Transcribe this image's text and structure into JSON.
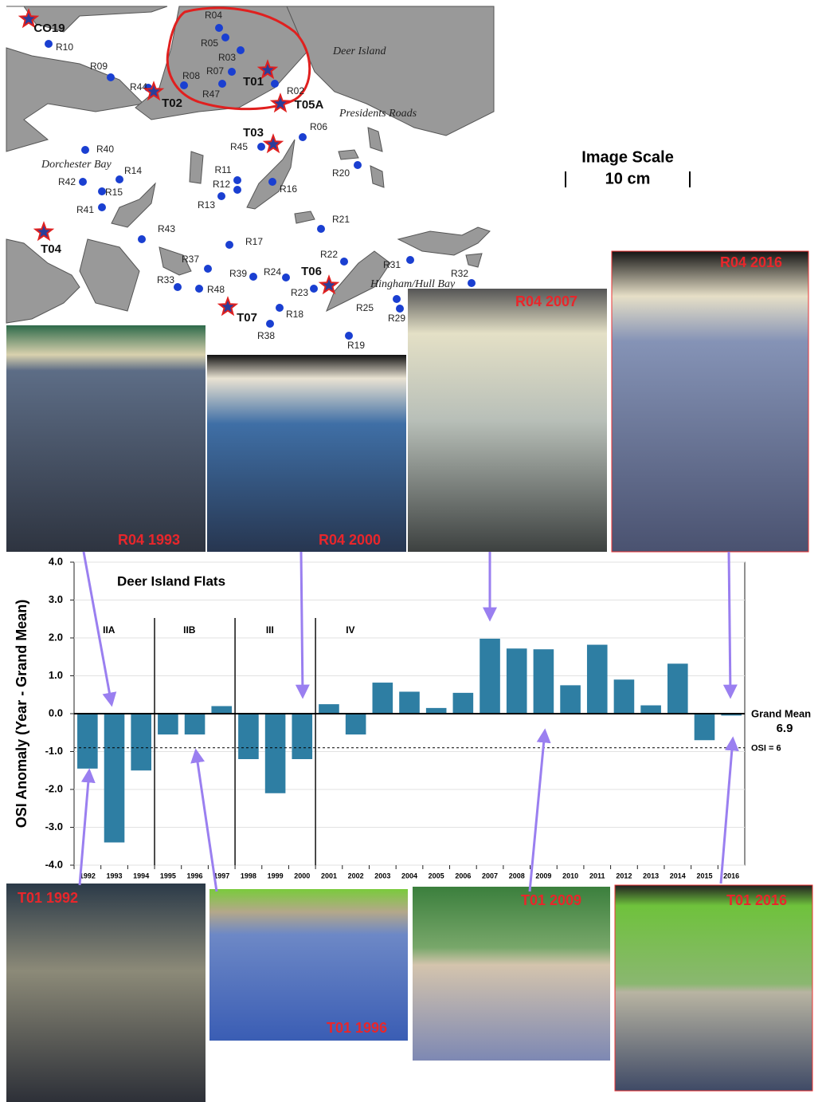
{
  "map": {
    "place_names": [
      "Deer Island",
      "Presidents Roads",
      "Dorchester Bay",
      "Hingham/Hull Bay"
    ],
    "stations": [
      "R04",
      "R05",
      "R03",
      "R07",
      "R08",
      "R47",
      "R02",
      "R10",
      "R09",
      "R44",
      "R06",
      "R45",
      "R40",
      "R14",
      "R42",
      "R15",
      "R41",
      "R11",
      "R12",
      "R13",
      "R16",
      "R20",
      "R21",
      "R43",
      "R17",
      "R22",
      "R31",
      "R32",
      "R37",
      "R39",
      "R24",
      "R33",
      "R48",
      "R23",
      "R25",
      "R29",
      "R18",
      "R38",
      "R19"
    ],
    "sites": [
      "CO19",
      "T02",
      "T01",
      "T05A",
      "T03",
      "T04",
      "T06",
      "T07"
    ]
  },
  "scale": {
    "title": "Image Scale",
    "length": "10 cm"
  },
  "photos": {
    "top": [
      "R04 1993",
      "R04 2000",
      "R04 2007",
      "R04 2016"
    ],
    "bottom": [
      "T01 1992",
      "T01 1996",
      "T01 2009",
      "T01 2016"
    ]
  },
  "chart_data": {
    "type": "bar",
    "title": "Deer Island Flats",
    "y_label": "OSI Anomaly (Year - Grand Mean)",
    "categories": [
      "1992",
      "1993",
      "1994",
      "1995",
      "1996",
      "1997",
      "1998",
      "1999",
      "2000",
      "2001",
      "2002",
      "2003",
      "2004",
      "2005",
      "2006",
      "2007",
      "2008",
      "2009",
      "2010",
      "2011",
      "2012",
      "2013",
      "2014",
      "2015",
      "2016"
    ],
    "values": [
      -1.45,
      -3.4,
      -1.5,
      -0.55,
      -0.55,
      0.2,
      -1.2,
      -2.1,
      -1.2,
      0.25,
      -0.55,
      0.82,
      0.58,
      0.15,
      0.55,
      1.98,
      1.72,
      1.7,
      0.75,
      1.82,
      0.9,
      0.22,
      1.32,
      -0.7,
      -0.05
    ],
    "color": "#2e7ea3",
    "ylim": [
      -4,
      4
    ],
    "yticks": [
      {
        "value": 4,
        "label": "4.0"
      },
      {
        "value": 3,
        "label": "3.0"
      },
      {
        "value": 2,
        "label": "2.0"
      },
      {
        "value": 1,
        "label": "1.0"
      },
      {
        "value": 0,
        "label": "0.0"
      },
      {
        "value": -1,
        "label": "-1.0"
      },
      {
        "value": -2,
        "label": "-2.0"
      },
      {
        "value": -3,
        "label": "-3.0"
      },
      {
        "value": -4,
        "label": "-4.0"
      }
    ],
    "grid": true,
    "zero_line": {
      "label": "Grand Mean",
      "value_label": "6.9"
    },
    "reference_line": {
      "value": -0.9,
      "label": "OSI = 6"
    },
    "periods": [
      {
        "label": "IIA",
        "first": "1992"
      },
      {
        "label": "IIB",
        "first": "1995"
      },
      {
        "label": "III",
        "first": "1998"
      },
      {
        "label": "IV",
        "first": "2001"
      }
    ]
  }
}
